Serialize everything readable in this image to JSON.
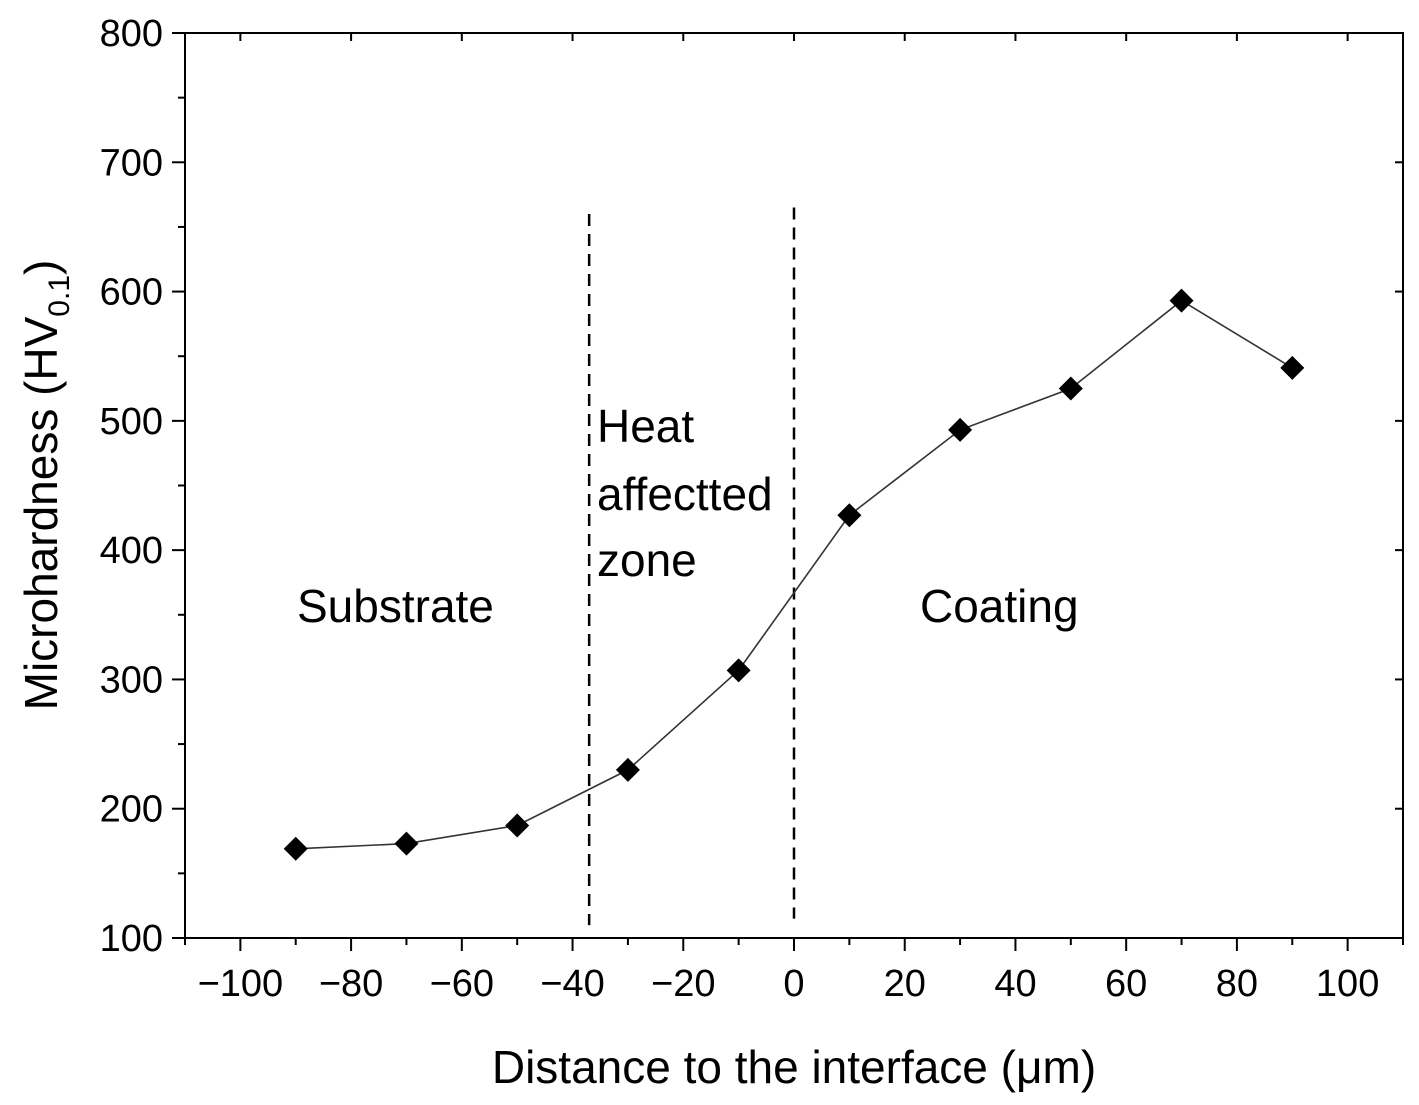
{
  "chart_data": {
    "type": "line",
    "xlabel": "Distance to the  interface (μm)",
    "ylabel_main": "Microhardness (HV",
    "ylabel_sub": "0.1",
    "ylabel_close": ")",
    "xlim": [
      -110,
      110
    ],
    "ylim": [
      100,
      800
    ],
    "xticks": [
      -100,
      -80,
      -60,
      -40,
      -20,
      0,
      20,
      40,
      60,
      80,
      100
    ],
    "xtick_labels": [
      "−100",
      "−80",
      "−60",
      "−40",
      "−20",
      "0",
      "20",
      "40",
      "60",
      "80",
      "100"
    ],
    "yticks": [
      100,
      200,
      300,
      400,
      500,
      600,
      700,
      800
    ],
    "ytick_labels": [
      "100",
      "200",
      "300",
      "400",
      "500",
      "600",
      "700",
      "800"
    ],
    "series": [
      {
        "marker": "diamond",
        "color": "#000000",
        "x": [
          -90,
          -70,
          -50,
          -30,
          -10,
          10,
          30,
          50,
          70,
          90
        ],
        "y": [
          169,
          173,
          187,
          230,
          307,
          427,
          493,
          525,
          593,
          541
        ]
      }
    ],
    "vlines": [
      {
        "x": -37,
        "ymin": 110,
        "ymax": 660,
        "style": "dashed"
      },
      {
        "x": 0,
        "ymin": 115,
        "ymax": 665,
        "style": "dashed"
      }
    ],
    "annotations": {
      "substrate": "Substrate",
      "haz_line1": "Heat",
      "haz_line2": "affectted",
      "haz_line3": "zone",
      "coating": "Coating"
    },
    "grid": false
  }
}
